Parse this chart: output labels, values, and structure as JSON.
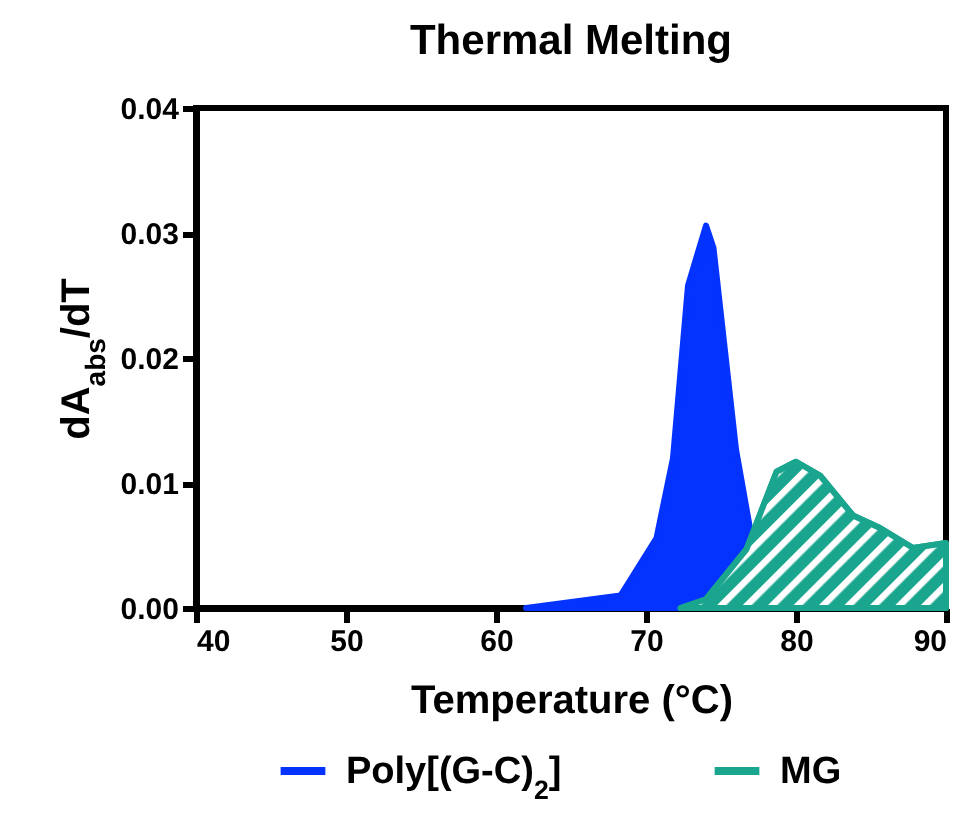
{
  "chart_data": {
    "type": "area",
    "title": "Thermal Melting",
    "xlabel": "Temperature (°C)",
    "ylabel": "dA$_{abs}$/dT",
    "xlim": [
      40,
      90
    ],
    "xticks": [
      40,
      50,
      60,
      70,
      80,
      90
    ],
    "ylim": [
      0,
      0.04
    ],
    "yticks": [
      {
        "value": 0,
        "label": "0.00"
      },
      {
        "value": 0.01,
        "label": "0.01"
      },
      {
        "value": 0.02,
        "label": "0.02"
      },
      {
        "value": 0.03,
        "label": "0.03"
      },
      {
        "value": 0.04,
        "label": "0.04"
      }
    ],
    "grid": false,
    "legend": "bottom",
    "series": [
      {
        "name": "Poly[(G-C)$_{2}$]",
        "color": "#0433ff",
        "x": [
          62,
          68.3,
          70.7,
          71.8,
          72.8,
          74,
          74.5,
          76,
          76.9,
          78
        ],
        "values": [
          0,
          0.001,
          0.0056,
          0.012,
          0.0258,
          0.0306,
          0.0288,
          0.0127,
          0.0066,
          0
        ]
      },
      {
        "name": "MG",
        "color": "#1aa58e",
        "x": [
          72.3,
          74,
          76.7,
          78.7,
          80,
          81.6,
          83.8,
          85.6,
          87.8,
          90
        ],
        "values": [
          0,
          0.0007,
          0.0047,
          0.0109,
          0.0117,
          0.0106,
          0.0074,
          0.0064,
          0.0048,
          0.0052
        ]
      }
    ]
  }
}
